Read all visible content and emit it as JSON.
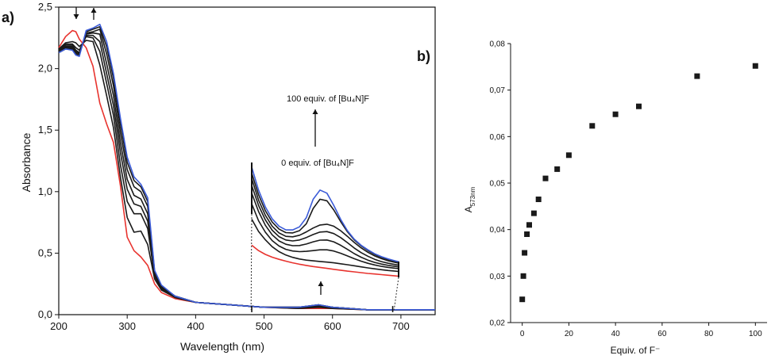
{
  "chart_data": [
    {
      "panel_label": "a)",
      "type": "line",
      "xlabel": "Wavelength (nm)",
      "ylabel": "Absorbance",
      "xlim": [
        200,
        750
      ],
      "ylim": [
        0,
        2.5
      ],
      "x_ticks": [
        "200",
        "300",
        "400",
        "500",
        "600",
        "700"
      ],
      "y_ticks": [
        "0,0",
        "0,5",
        "1,0",
        "1,5",
        "2,0",
        "2,5"
      ],
      "grid": false,
      "colors": {
        "first": "#e8332e",
        "last": "#3b5bd8",
        "middle": "#1a1a1a"
      },
      "x": [
        200,
        210,
        220,
        225,
        230,
        240,
        250,
        260,
        270,
        280,
        290,
        300,
        310,
        320,
        330,
        340,
        350,
        370,
        400,
        450,
        500,
        550,
        580,
        600,
        650,
        700,
        750
      ],
      "series": [
        {
          "values": [
            2.17,
            2.26,
            2.31,
            2.3,
            2.24,
            2.17,
            2.02,
            1.72,
            1.55,
            1.4,
            1.05,
            0.63,
            0.52,
            0.47,
            0.4,
            0.25,
            0.18,
            0.13,
            0.1,
            0.08,
            0.06,
            0.05,
            0.05,
            0.05,
            0.04,
            0.04,
            0.04
          ]
        },
        {
          "values": [
            2.16,
            2.21,
            2.22,
            2.21,
            2.18,
            2.23,
            2.22,
            2.03,
            1.78,
            1.52,
            1.12,
            0.79,
            0.67,
            0.68,
            0.57,
            0.29,
            0.2,
            0.14,
            0.1,
            0.08,
            0.06,
            0.05,
            0.06,
            0.05,
            0.04,
            0.04,
            0.04
          ]
        },
        {
          "values": [
            2.15,
            2.2,
            2.2,
            2.17,
            2.15,
            2.26,
            2.25,
            2.14,
            1.88,
            1.62,
            1.22,
            0.92,
            0.82,
            0.82,
            0.7,
            0.31,
            0.21,
            0.14,
            0.1,
            0.08,
            0.06,
            0.06,
            0.06,
            0.06,
            0.04,
            0.04,
            0.04
          ]
        },
        {
          "values": [
            2.15,
            2.19,
            2.19,
            2.15,
            2.13,
            2.27,
            2.27,
            2.22,
            1.96,
            1.7,
            1.32,
            1.02,
            0.9,
            0.88,
            0.76,
            0.32,
            0.22,
            0.15,
            0.1,
            0.08,
            0.06,
            0.06,
            0.07,
            0.06,
            0.04,
            0.04,
            0.04
          ]
        },
        {
          "values": [
            2.14,
            2.18,
            2.18,
            2.14,
            2.12,
            2.28,
            2.29,
            2.28,
            2.04,
            1.78,
            1.4,
            1.1,
            0.97,
            0.94,
            0.82,
            0.33,
            0.22,
            0.15,
            0.1,
            0.08,
            0.06,
            0.06,
            0.07,
            0.06,
            0.04,
            0.04,
            0.04
          ]
        },
        {
          "values": [
            2.14,
            2.17,
            2.17,
            2.13,
            2.12,
            2.29,
            2.3,
            2.32,
            2.12,
            1.86,
            1.48,
            1.18,
            1.04,
            1.0,
            0.88,
            0.34,
            0.23,
            0.15,
            0.1,
            0.08,
            0.06,
            0.06,
            0.08,
            0.06,
            0.04,
            0.04,
            0.04
          ]
        },
        {
          "values": [
            2.13,
            2.16,
            2.16,
            2.12,
            2.11,
            2.3,
            2.32,
            2.34,
            2.18,
            1.92,
            1.55,
            1.24,
            1.09,
            1.04,
            0.92,
            0.35,
            0.23,
            0.15,
            0.1,
            0.08,
            0.06,
            0.06,
            0.08,
            0.06,
            0.04,
            0.04,
            0.04
          ]
        },
        {
          "values": [
            2.13,
            2.16,
            2.15,
            2.11,
            2.1,
            2.31,
            2.33,
            2.36,
            2.22,
            1.96,
            1.6,
            1.28,
            1.12,
            1.06,
            0.95,
            0.36,
            0.24,
            0.15,
            0.1,
            0.08,
            0.06,
            0.06,
            0.08,
            0.06,
            0.04,
            0.04,
            0.04
          ]
        }
      ],
      "annotations": {
        "inset_top": "100 equiv. of [Bu₄N]F",
        "inset_bottom": "0 equiv. of [Bu₄N]F"
      },
      "inset": {
        "x": [
          480,
          490,
          500,
          510,
          520,
          530,
          540,
          550,
          560,
          570,
          580,
          590,
          600,
          610,
          620,
          630,
          640,
          650,
          660,
          670,
          680,
          690,
          695
        ],
        "series": [
          {
            "values": [
              0.36,
              0.325,
              0.3,
              0.282,
              0.268,
              0.256,
              0.245,
              0.236,
              0.228,
              0.221,
              0.215,
              0.209,
              0.203,
              0.197,
              0.191,
              0.186,
              0.181,
              0.176,
              0.172,
              0.168,
              0.164,
              0.16,
              0.158
            ]
          },
          {
            "values": [
              0.53,
              0.45,
              0.395,
              0.35,
              0.318,
              0.296,
              0.281,
              0.27,
              0.263,
              0.258,
              0.254,
              0.25,
              0.245,
              0.239,
              0.233,
              0.226,
              0.219,
              0.212,
              0.206,
              0.2,
              0.195,
              0.191,
              0.189
            ]
          },
          {
            "values": [
              0.63,
              0.52,
              0.445,
              0.39,
              0.355,
              0.333,
              0.322,
              0.318,
              0.32,
              0.325,
              0.33,
              0.33,
              0.322,
              0.308,
              0.29,
              0.272,
              0.256,
              0.242,
              0.231,
              0.222,
              0.215,
              0.21,
              0.208
            ]
          },
          {
            "values": [
              0.7,
              0.58,
              0.49,
              0.428,
              0.388,
              0.366,
              0.357,
              0.358,
              0.368,
              0.382,
              0.393,
              0.394,
              0.382,
              0.36,
              0.333,
              0.305,
              0.282,
              0.263,
              0.248,
              0.237,
              0.228,
              0.222,
              0.219
            ]
          },
          {
            "values": [
              0.75,
              0.62,
              0.525,
              0.458,
              0.416,
              0.394,
              0.388,
              0.394,
              0.41,
              0.43,
              0.446,
              0.449,
              0.436,
              0.41,
              0.377,
              0.342,
              0.312,
              0.288,
              0.268,
              0.253,
              0.242,
              0.234,
              0.23
            ]
          },
          {
            "values": [
              0.795,
              0.655,
              0.555,
              0.484,
              0.44,
              0.418,
              0.415,
              0.425,
              0.447,
              0.472,
              0.492,
              0.497,
              0.484,
              0.455,
              0.418,
              0.378,
              0.343,
              0.314,
              0.29,
              0.272,
              0.258,
              0.248,
              0.243
            ]
          },
          {
            "values": [
              0.83,
              0.69,
              0.585,
              0.511,
              0.465,
              0.442,
              0.44,
              0.455,
              0.5,
              0.6,
              0.66,
              0.65,
              0.59,
              0.515,
              0.448,
              0.395,
              0.356,
              0.326,
              0.3,
              0.281,
              0.266,
              0.254,
              0.248
            ]
          },
          {
            "values": [
              0.87,
              0.72,
              0.61,
              0.532,
              0.484,
              0.46,
              0.46,
              0.48,
              0.54,
              0.66,
              0.72,
              0.7,
              0.62,
              0.53,
              0.455,
              0.4,
              0.36,
              0.33,
              0.304,
              0.285,
              0.27,
              0.258,
              0.252
            ]
          }
        ]
      }
    },
    {
      "panel_label": "b)",
      "type": "scatter",
      "xlabel": "Equiv. of F⁻",
      "ylabel": "A",
      "ylabel_sub": "573nm",
      "xlim": [
        -5,
        105
      ],
      "ylim": [
        0.02,
        0.08
      ],
      "x_ticks": [
        "0",
        "20",
        "40",
        "60",
        "80",
        "100"
      ],
      "y_ticks": [
        "0,02",
        "0,03",
        "0,04",
        "0,05",
        "0,06",
        "0,07",
        "0,08"
      ],
      "grid": false,
      "color": "#1a1a1a",
      "x": [
        0,
        0.5,
        1,
        2,
        3,
        5,
        7,
        10,
        15,
        20,
        30,
        40,
        50,
        75,
        100
      ],
      "y": [
        0.025,
        0.03,
        0.035,
        0.039,
        0.041,
        0.0435,
        0.0465,
        0.051,
        0.053,
        0.056,
        0.0623,
        0.0648,
        0.0665,
        0.073,
        0.0752
      ]
    }
  ]
}
